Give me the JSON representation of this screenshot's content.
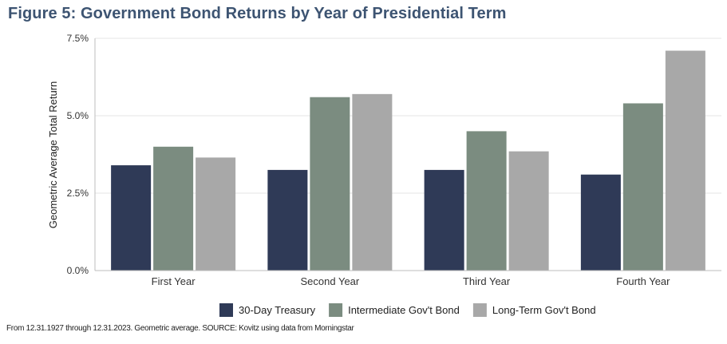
{
  "title": "Figure 5: Government Bond Returns by Year of Presidential Term",
  "footnote": "From 12.31.1927 through 12.31.2023. Geometric average. SOURCE: Kovitz using data from Morningstar",
  "colors": {
    "title": "#3d5472",
    "treasury": "#2f3a57",
    "intermediate": "#7b8c80",
    "longterm": "#a8a8a8",
    "grid": "#e6e6e6"
  },
  "chart_data": {
    "type": "bar",
    "title": "Figure 5: Government Bond Returns by Year of Presidential Term",
    "ylabel": "Geometric Average Total Return",
    "xlabel": "",
    "categories": [
      "First Year",
      "Second Year",
      "Third Year",
      "Fourth Year"
    ],
    "series": [
      {
        "name": "30-Day Treasury",
        "color": "#2f3a57",
        "values": [
          3.4,
          3.25,
          3.25,
          3.1
        ]
      },
      {
        "name": "Intermediate Gov't Bond",
        "color": "#7b8c80",
        "values": [
          4.0,
          5.6,
          4.5,
          5.4
        ]
      },
      {
        "name": "Long-Term Gov't Bond",
        "color": "#a8a8a8",
        "values": [
          3.65,
          5.7,
          3.85,
          7.1
        ]
      }
    ],
    "ylim": [
      0,
      7.5
    ],
    "yticks": [
      0,
      2.5,
      5.0,
      7.5
    ],
    "ytick_labels": [
      "0.0%",
      "2.5%",
      "5.0%",
      "7.5%"
    ],
    "grid": true,
    "legend_position": "bottom"
  }
}
